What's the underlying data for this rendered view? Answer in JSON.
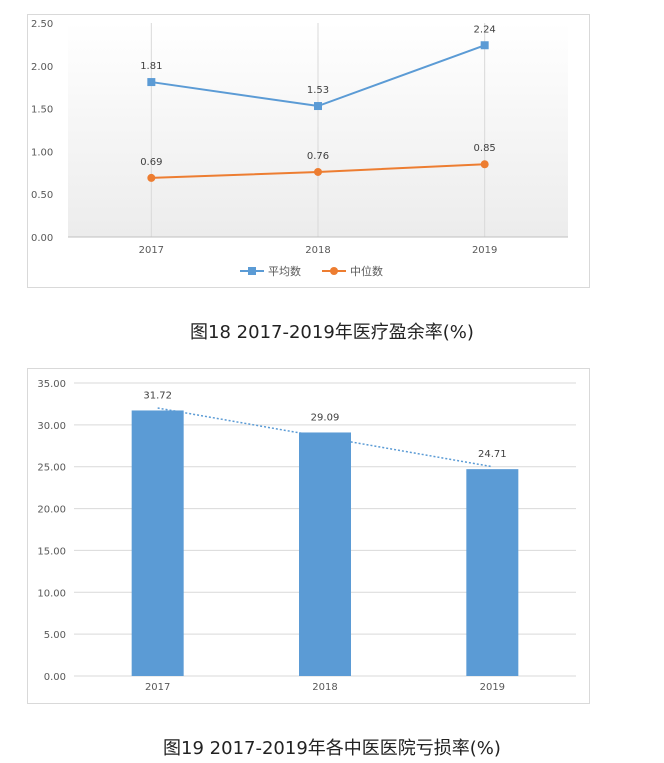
{
  "chart_data": [
    {
      "type": "line",
      "categories": [
        "2017",
        "2018",
        "2019"
      ],
      "series": [
        {
          "name": "平均数",
          "values": [
            1.81,
            1.53,
            2.24
          ],
          "color": "#5b9bd5",
          "marker": "square"
        },
        {
          "name": "中位数",
          "values": [
            0.69,
            0.76,
            0.85
          ],
          "color": "#ed7d31",
          "marker": "circle"
        }
      ],
      "data_labels": [
        [
          "1.81",
          "1.53",
          "2.24"
        ],
        [
          "0.69",
          "0.76",
          "0.85"
        ]
      ],
      "ylim": [
        0,
        2.5
      ],
      "yticks": [
        "0.00",
        "0.50",
        "1.00",
        "1.50",
        "2.00",
        "2.50"
      ],
      "ytick_values": [
        0,
        0.5,
        1,
        1.5,
        2,
        2.5
      ],
      "grid": "vertical",
      "legend": "bottom",
      "title": "图18 2017-2019年医疗盈余率(%)"
    },
    {
      "type": "bar",
      "categories": [
        "2017",
        "2018",
        "2019"
      ],
      "values": [
        31.72,
        29.09,
        24.71
      ],
      "data_labels": [
        "31.72",
        "29.09",
        "24.71"
      ],
      "color": "#5b9bd5",
      "trendline": "linear",
      "trendline_color": "#5b9bd5",
      "ylim": [
        0,
        35
      ],
      "yticks": [
        "0.00",
        "5.00",
        "10.00",
        "15.00",
        "20.00",
        "25.00",
        "30.00",
        "35.00"
      ],
      "ytick_values": [
        0,
        5,
        10,
        15,
        20,
        25,
        30,
        35
      ],
      "grid": "horizontal",
      "title": "图19 2017-2019年各中医医院亏损率(%)"
    }
  ]
}
